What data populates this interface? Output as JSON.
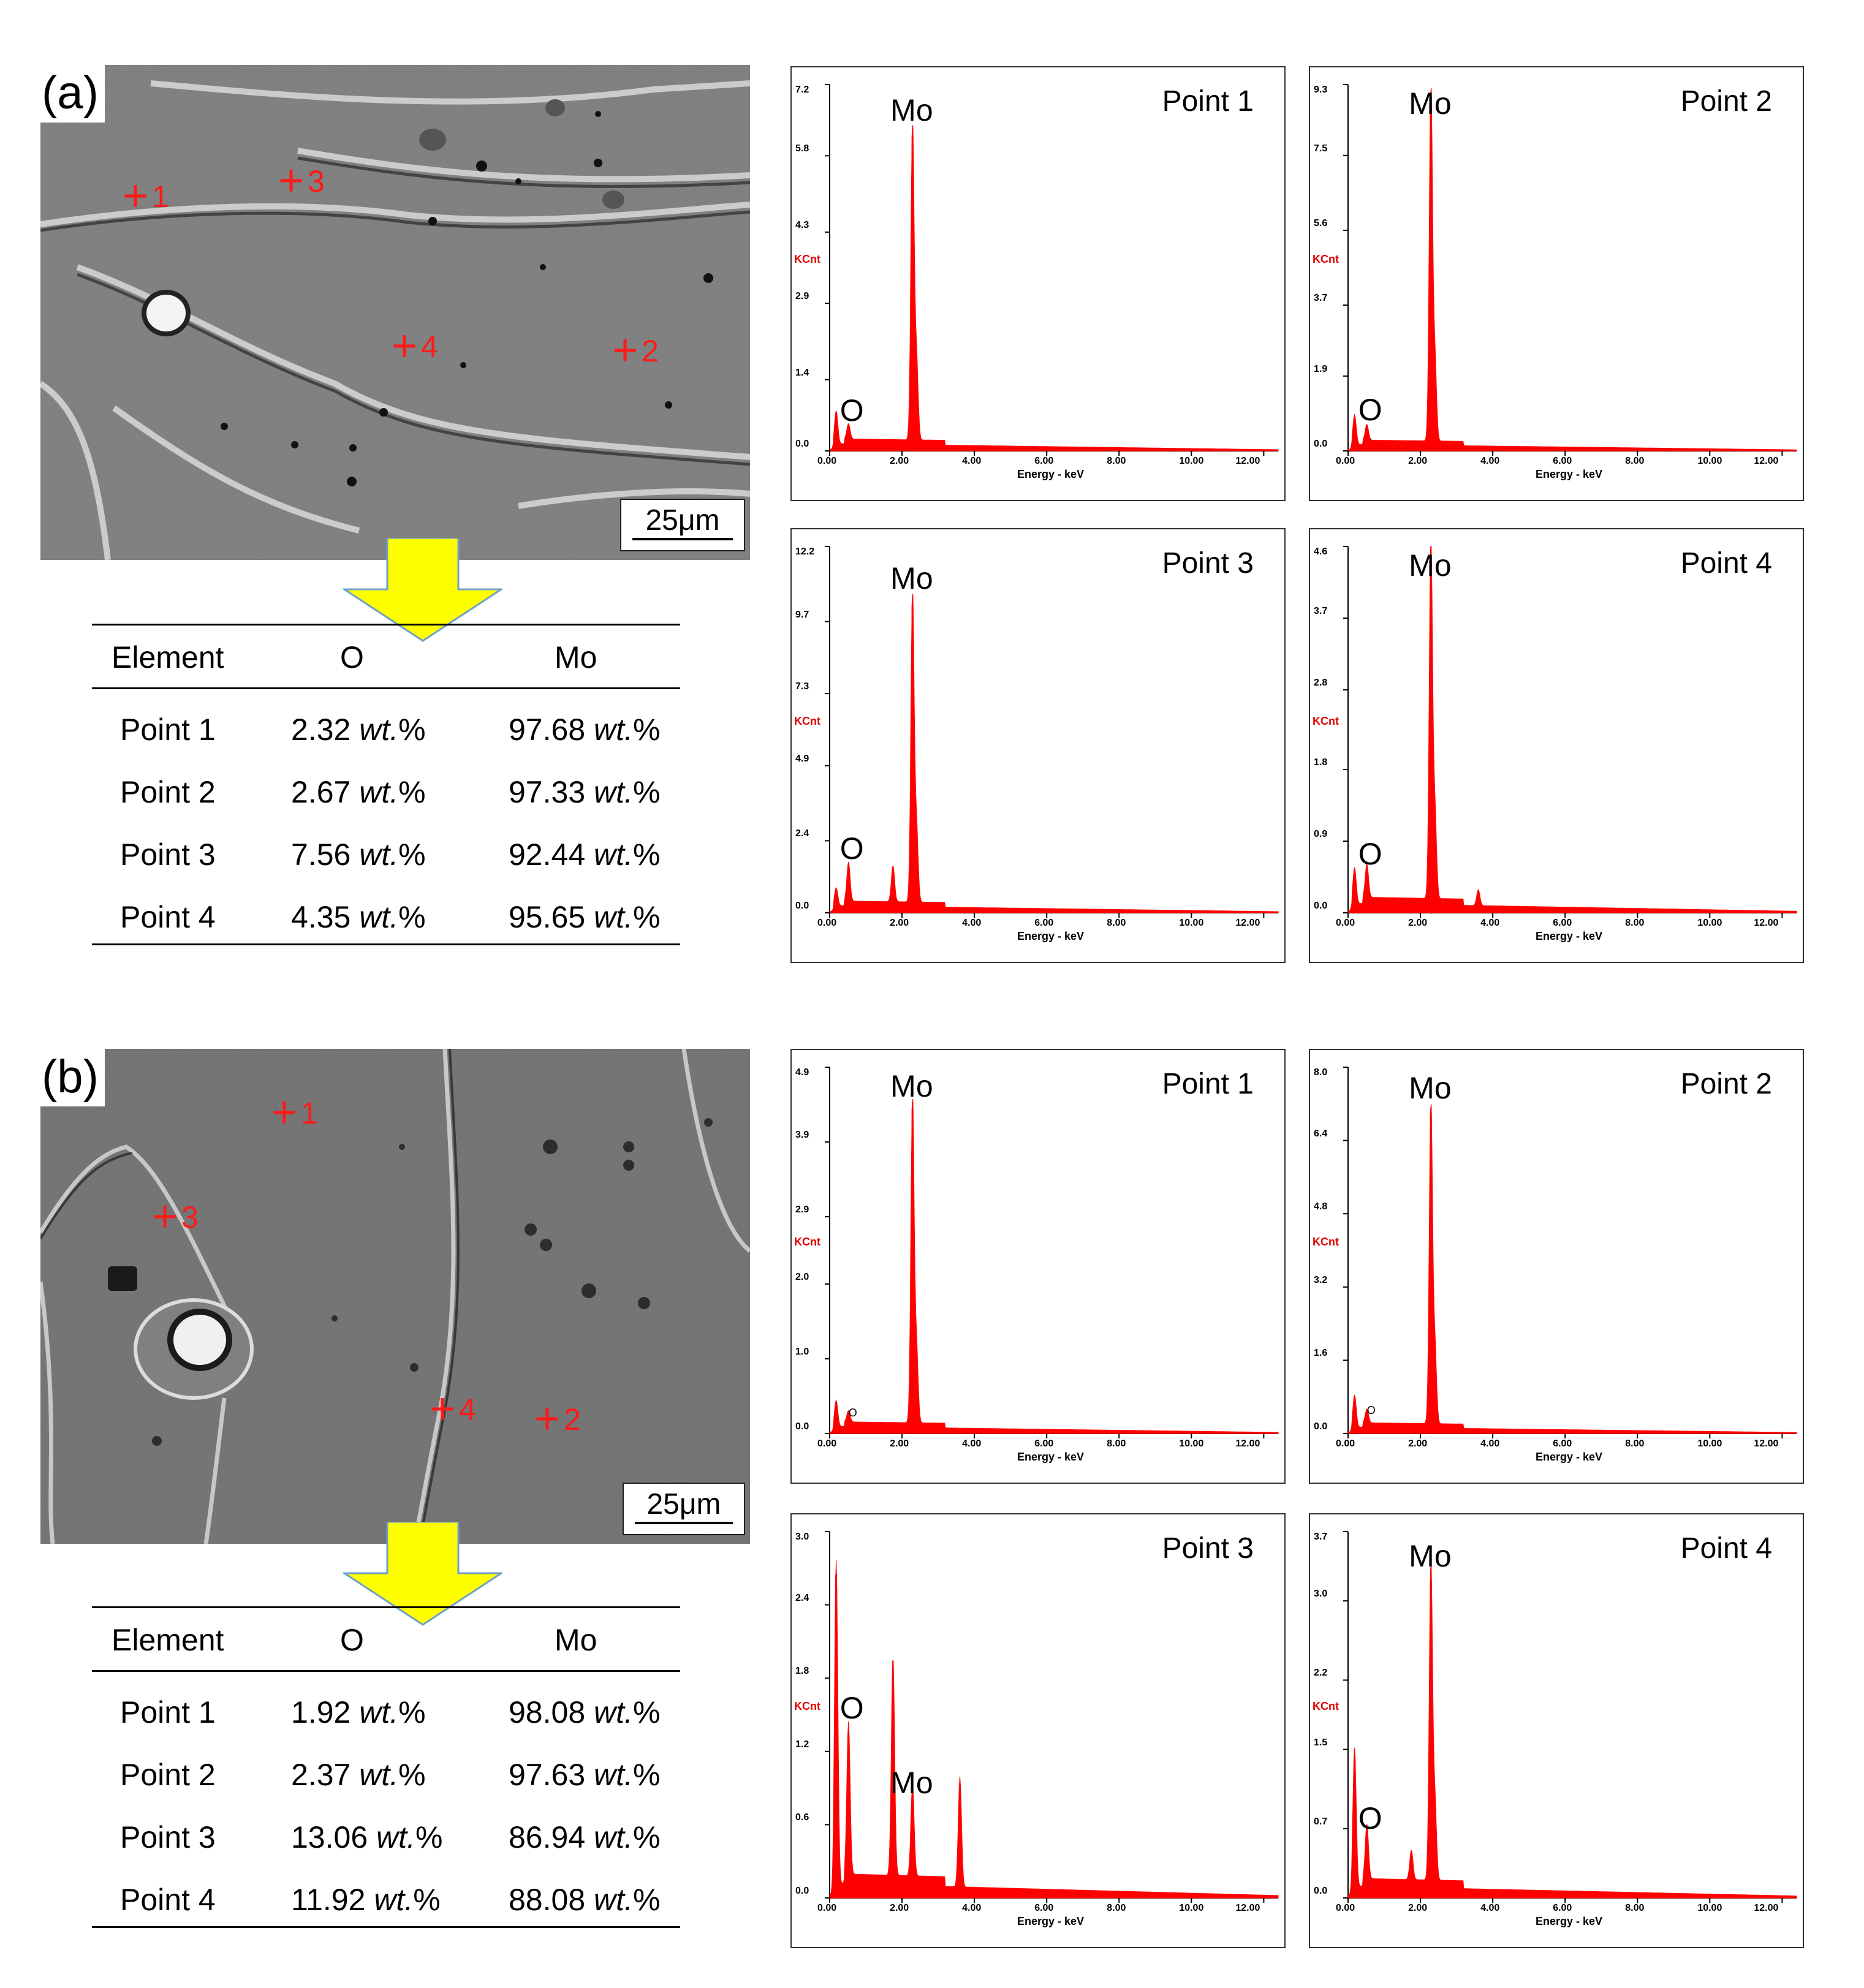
{
  "panels": [
    {
      "label": "(a)",
      "scale_bar": "25μm",
      "markers": [
        {
          "id": "1",
          "x": 0.145,
          "y": 0.26
        },
        {
          "id": "3",
          "x": 0.365,
          "y": 0.23
        },
        {
          "id": "4",
          "x": 0.525,
          "y": 0.565
        },
        {
          "id": "2",
          "x": 0.84,
          "y": 0.575
        }
      ],
      "table": {
        "headers": [
          "Element",
          "O",
          "Mo"
        ],
        "unit": "wt.",
        "rows": [
          {
            "point": "Point 1",
            "o": "2.32",
            "mo": "97.68"
          },
          {
            "point": "Point 2",
            "o": "2.67",
            "mo": "97.33"
          },
          {
            "point": "Point 3",
            "o": "7.56",
            "mo": "92.44"
          },
          {
            "point": "Point 4",
            "o": "4.35",
            "mo": "95.65"
          }
        ]
      }
    },
    {
      "label": "(b)",
      "scale_bar": "25μm",
      "markers": [
        {
          "id": "1",
          "x": 0.36,
          "y": 0.125
        },
        {
          "id": "3",
          "x": 0.195,
          "y": 0.335
        },
        {
          "id": "4",
          "x": 0.585,
          "y": 0.715
        },
        {
          "id": "2",
          "x": 0.73,
          "y": 0.735
        }
      ],
      "table": {
        "headers": [
          "Element",
          "O",
          "Mo"
        ],
        "unit": "wt.",
        "rows": [
          {
            "point": "Point 1",
            "o": "1.92",
            "mo": "98.08"
          },
          {
            "point": "Point 2",
            "o": "2.37",
            "mo": "97.63"
          },
          {
            "point": "Point 3",
            "o": "13.06",
            "mo": "86.94"
          },
          {
            "point": "Point 4",
            "o": "11.92",
            "mo": "88.08"
          }
        ]
      }
    }
  ],
  "spectrum_common": {
    "y_unit": "KCnt",
    "x_label": "Energy - keV",
    "x_ticks": [
      "0.00",
      "2.00",
      "4.00",
      "6.00",
      "8.00",
      "10.00",
      "12.00"
    ],
    "x_range": [
      0,
      12.4
    ],
    "bar_color": "#ff0000"
  },
  "chart_data": [
    {
      "type": "bar",
      "panel": "(a)",
      "title": "Point 1",
      "yticks": [
        "0.0",
        "1.4",
        "2.9",
        "4.3",
        "5.8",
        "7.2"
      ],
      "ylim": [
        0,
        7.2
      ],
      "labels": [
        {
          "text": "Mo",
          "energy": 2.29
        },
        {
          "text": "O",
          "energy": 0.52
        }
      ],
      "peaks": [
        {
          "energy": 0.18,
          "counts": 0.65
        },
        {
          "energy": 0.52,
          "counts": 0.3
        },
        {
          "energy": 2.29,
          "counts": 6.2
        },
        {
          "energy": 2.4,
          "counts": 1.6
        }
      ],
      "baseline": 0.12
    },
    {
      "type": "bar",
      "panel": "(a)",
      "title": "Point 2",
      "yticks": [
        "0.0",
        "1.9",
        "3.7",
        "5.6",
        "7.5",
        "9.3"
      ],
      "ylim": [
        0,
        9.3
      ],
      "labels": [
        {
          "text": "Mo",
          "energy": 2.29
        },
        {
          "text": "O",
          "energy": 0.52
        }
      ],
      "peaks": [
        {
          "energy": 0.18,
          "counts": 0.75
        },
        {
          "energy": 0.52,
          "counts": 0.4
        },
        {
          "energy": 2.29,
          "counts": 9.0
        },
        {
          "energy": 2.4,
          "counts": 2.1
        }
      ],
      "baseline": 0.14
    },
    {
      "type": "bar",
      "panel": "(a)",
      "title": "Point 3",
      "yticks": [
        "0.0",
        "2.4",
        "4.9",
        "7.3",
        "9.7",
        "12.2"
      ],
      "ylim": [
        0,
        12.2
      ],
      "labels": [
        {
          "text": "Mo",
          "energy": 2.29
        },
        {
          "text": "O",
          "energy": 0.52
        }
      ],
      "peaks": [
        {
          "energy": 0.18,
          "counts": 0.6
        },
        {
          "energy": 0.52,
          "counts": 1.3
        },
        {
          "energy": 1.75,
          "counts": 1.2
        },
        {
          "energy": 2.29,
          "counts": 10.3
        },
        {
          "energy": 2.4,
          "counts": 2.5
        }
      ],
      "baseline": 0.2
    },
    {
      "type": "bar",
      "panel": "(a)",
      "title": "Point 4",
      "yticks": [
        "0.0",
        "0.9",
        "1.8",
        "2.8",
        "3.7",
        "4.6"
      ],
      "ylim": [
        0,
        4.6
      ],
      "labels": [
        {
          "text": "Mo",
          "energy": 2.29
        },
        {
          "text": "O",
          "energy": 0.52
        }
      ],
      "peaks": [
        {
          "energy": 0.18,
          "counts": 0.45
        },
        {
          "energy": 0.52,
          "counts": 0.42
        },
        {
          "energy": 2.29,
          "counts": 4.5
        },
        {
          "energy": 2.4,
          "counts": 1.1
        },
        {
          "energy": 3.6,
          "counts": 0.2
        }
      ],
      "baseline": 0.1
    },
    {
      "type": "bar",
      "panel": "(b)",
      "title": "Point 1",
      "yticks": [
        "0.0",
        "1.0",
        "2.0",
        "2.9",
        "3.9",
        "4.9"
      ],
      "ylim": [
        0,
        4.9
      ],
      "labels": [
        {
          "text": "Mo",
          "energy": 2.29
        },
        {
          "text": "O",
          "energy": 0.52
        }
      ],
      "peaks": [
        {
          "energy": 0.18,
          "counts": 0.35
        },
        {
          "energy": 0.52,
          "counts": 0.15
        },
        {
          "energy": 2.29,
          "counts": 4.35
        },
        {
          "energy": 2.4,
          "counts": 1.0
        }
      ],
      "baseline": 0.08
    },
    {
      "type": "bar",
      "panel": "(b)",
      "title": "Point 2",
      "yticks": [
        "0.0",
        "1.6",
        "3.2",
        "4.8",
        "6.4",
        "8.0"
      ],
      "ylim": [
        0,
        8.0
      ],
      "labels": [
        {
          "text": "Mo",
          "energy": 2.29
        },
        {
          "text": "O",
          "energy": 0.52
        }
      ],
      "peaks": [
        {
          "energy": 0.18,
          "counts": 0.7
        },
        {
          "energy": 0.52,
          "counts": 0.3
        },
        {
          "energy": 2.29,
          "counts": 7.0
        },
        {
          "energy": 2.4,
          "counts": 1.7
        }
      ],
      "baseline": 0.12
    },
    {
      "type": "bar",
      "panel": "(b)",
      "title": "Point 3",
      "yticks": [
        "0.0",
        "0.6",
        "1.2",
        "1.8",
        "2.4",
        "3.0"
      ],
      "ylim": [
        0,
        3.0
      ],
      "labels": [
        {
          "text": "O",
          "energy": 0.52
        },
        {
          "text": "Mo",
          "energy": 2.29
        }
      ],
      "peaks": [
        {
          "energy": 0.18,
          "counts": 2.65
        },
        {
          "energy": 0.52,
          "counts": 1.25
        },
        {
          "energy": 1.75,
          "counts": 1.8
        },
        {
          "energy": 2.29,
          "counts": 0.75
        },
        {
          "energy": 3.6,
          "counts": 0.9
        }
      ],
      "baseline": 0.1
    },
    {
      "type": "bar",
      "panel": "(b)",
      "title": "Point 4",
      "yticks": [
        "0.0",
        "0.7",
        "1.5",
        "2.2",
        "3.0",
        "3.7"
      ],
      "ylim": [
        0,
        3.7
      ],
      "labels": [
        {
          "text": "Mo",
          "energy": 2.29
        },
        {
          "text": "O",
          "energy": 0.52
        }
      ],
      "peaks": [
        {
          "energy": 0.18,
          "counts": 1.4
        },
        {
          "energy": 0.52,
          "counts": 0.55
        },
        {
          "energy": 1.75,
          "counts": 0.3
        },
        {
          "energy": 2.29,
          "counts": 3.2
        },
        {
          "energy": 2.4,
          "counts": 0.8
        }
      ],
      "baseline": 0.1
    }
  ]
}
